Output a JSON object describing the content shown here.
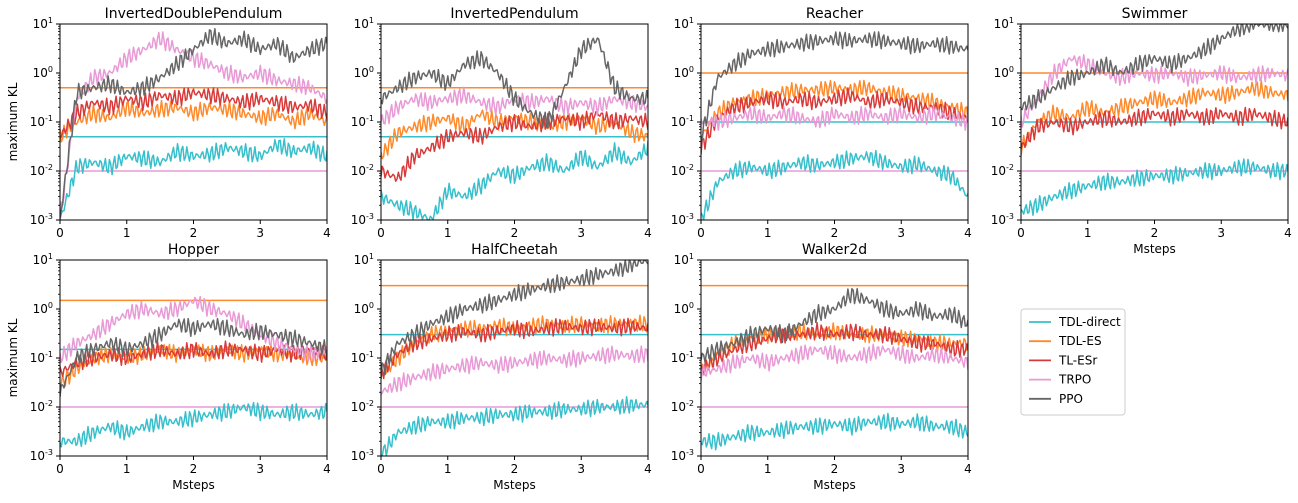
{
  "legend": {
    "placement": "right",
    "entries": [
      {
        "key": "tdl_direct",
        "label": "TDL-direct",
        "color": "#38bfcc"
      },
      {
        "key": "tdl_es",
        "label": "TDL-ES",
        "color": "#ff8a2b"
      },
      {
        "key": "tl_esr",
        "label": "TL-ESr",
        "color": "#d83a3a"
      },
      {
        "key": "trpo",
        "label": "TRPO",
        "color": "#e89ad6"
      },
      {
        "key": "ppo",
        "label": "PPO",
        "color": "#666666"
      }
    ]
  },
  "chart_data": [
    {
      "type": "line",
      "title": "InvertedDoublePendulum",
      "ylabel": "maximum KL",
      "xlabel": "",
      "xlim": [
        0,
        4
      ],
      "ylim": [
        0.001,
        10
      ],
      "yscale": "log",
      "x": [
        0,
        0.25,
        0.5,
        0.75,
        1,
        1.25,
        1.5,
        1.75,
        2,
        2.25,
        2.5,
        2.75,
        3,
        3.25,
        3.5,
        3.75,
        4
      ],
      "targets": {
        "tdl_direct": 0.05,
        "tdl_es": 0.5,
        "trpo": 0.01
      },
      "series": [
        {
          "name": "TDL-direct",
          "values": [
            0.001,
            0.012,
            0.015,
            0.012,
            0.02,
            0.018,
            0.015,
            0.025,
            0.02,
            0.022,
            0.03,
            0.025,
            0.02,
            0.035,
            0.025,
            0.03,
            0.02
          ]
        },
        {
          "name": "TDL-ES",
          "values": [
            0.05,
            0.1,
            0.15,
            0.12,
            0.2,
            0.15,
            0.18,
            0.2,
            0.15,
            0.2,
            0.18,
            0.15,
            0.12,
            0.15,
            0.1,
            0.15,
            0.1
          ]
        },
        {
          "name": "TL-ESr",
          "values": [
            0.05,
            0.15,
            0.25,
            0.2,
            0.3,
            0.25,
            0.35,
            0.3,
            0.4,
            0.35,
            0.3,
            0.25,
            0.3,
            0.25,
            0.2,
            0.22,
            0.15
          ]
        },
        {
          "name": "TRPO",
          "values": [
            0.001,
            0.3,
            0.8,
            1.0,
            2.0,
            3.0,
            5.0,
            3.0,
            2.0,
            1.5,
            1.0,
            0.8,
            1.0,
            0.7,
            0.6,
            0.5,
            0.3
          ]
        },
        {
          "name": "PPO",
          "values": [
            0.001,
            0.4,
            0.5,
            0.6,
            0.4,
            0.5,
            0.8,
            1.5,
            3.0,
            6.0,
            4.0,
            5.0,
            3.0,
            4.0,
            2.0,
            3.0,
            4.0
          ]
        }
      ]
    },
    {
      "type": "line",
      "title": "InvertedPendulum",
      "ylabel": "",
      "xlabel": "",
      "xlim": [
        0,
        4
      ],
      "ylim": [
        0.001,
        10
      ],
      "yscale": "log",
      "x": [
        0,
        0.25,
        0.5,
        0.75,
        1,
        1.25,
        1.5,
        1.75,
        2,
        2.25,
        2.5,
        2.75,
        3,
        3.25,
        3.5,
        3.75,
        4
      ],
      "targets": {
        "tdl_direct": 0.05,
        "tdl_es": 0.5
      },
      "series": [
        {
          "name": "TDL-direct",
          "values": [
            0.003,
            0.002,
            0.0015,
            0.001,
            0.004,
            0.003,
            0.005,
            0.01,
            0.008,
            0.012,
            0.015,
            0.01,
            0.02,
            0.012,
            0.025,
            0.015,
            0.03
          ]
        },
        {
          "name": "TDL-ES",
          "values": [
            0.02,
            0.06,
            0.08,
            0.1,
            0.12,
            0.08,
            0.15,
            0.1,
            0.12,
            0.1,
            0.08,
            0.1,
            0.12,
            0.08,
            0.1,
            0.06,
            0.05
          ]
        },
        {
          "name": "TL-ESr",
          "values": [
            0.01,
            0.007,
            0.02,
            0.03,
            0.05,
            0.06,
            0.05,
            0.08,
            0.1,
            0.08,
            0.1,
            0.12,
            0.1,
            0.15,
            0.1,
            0.12,
            0.1
          ]
        },
        {
          "name": "TRPO",
          "values": [
            0.1,
            0.2,
            0.3,
            0.25,
            0.3,
            0.35,
            0.25,
            0.2,
            0.3,
            0.25,
            0.3,
            0.2,
            0.25,
            0.2,
            0.3,
            0.25,
            0.2
          ]
        },
        {
          "name": "PPO",
          "values": [
            0.3,
            0.5,
            0.8,
            1.0,
            0.6,
            1.5,
            2.0,
            1.0,
            0.3,
            0.15,
            0.1,
            0.5,
            3.0,
            5.0,
            0.5,
            0.3,
            0.3
          ]
        }
      ]
    },
    {
      "type": "line",
      "title": "Reacher",
      "ylabel": "",
      "xlabel": "",
      "xlim": [
        0,
        4
      ],
      "ylim": [
        0.001,
        10
      ],
      "yscale": "log",
      "x": [
        0,
        0.25,
        0.5,
        0.75,
        1,
        1.25,
        1.5,
        1.75,
        2,
        2.25,
        2.5,
        2.75,
        3,
        3.25,
        3.5,
        3.75,
        4
      ],
      "targets": {
        "tdl_direct": 0.1,
        "tdl_es": 1.0,
        "trpo": 0.01
      },
      "series": [
        {
          "name": "TDL-direct",
          "values": [
            0.001,
            0.006,
            0.01,
            0.012,
            0.01,
            0.012,
            0.015,
            0.013,
            0.015,
            0.018,
            0.02,
            0.015,
            0.012,
            0.014,
            0.01,
            0.008,
            0.003
          ]
        },
        {
          "name": "TDL-ES",
          "values": [
            0.05,
            0.15,
            0.25,
            0.3,
            0.35,
            0.4,
            0.45,
            0.45,
            0.5,
            0.45,
            0.5,
            0.4,
            0.35,
            0.3,
            0.25,
            0.2,
            0.15
          ]
        },
        {
          "name": "TL-ESr",
          "values": [
            0.03,
            0.12,
            0.2,
            0.25,
            0.3,
            0.25,
            0.3,
            0.25,
            0.3,
            0.35,
            0.25,
            0.3,
            0.25,
            0.2,
            0.2,
            0.15,
            0.12
          ]
        },
        {
          "name": "TRPO",
          "values": [
            0.1,
            0.1,
            0.12,
            0.15,
            0.12,
            0.15,
            0.12,
            0.1,
            0.15,
            0.12,
            0.15,
            0.12,
            0.15,
            0.12,
            0.15,
            0.12,
            0.1
          ]
        },
        {
          "name": "PPO",
          "values": [
            0.05,
            0.8,
            1.5,
            2.5,
            3.0,
            3.5,
            4.0,
            4.5,
            5.0,
            4.5,
            5.0,
            4.5,
            4.0,
            3.5,
            4.0,
            3.5,
            3.0
          ]
        }
      ]
    },
    {
      "type": "line",
      "title": "Swimmer",
      "ylabel": "",
      "xlabel": "Msteps",
      "xlim": [
        0,
        4
      ],
      "ylim": [
        0.001,
        10
      ],
      "yscale": "log",
      "x": [
        0,
        0.25,
        0.5,
        0.75,
        1,
        1.25,
        1.5,
        1.75,
        2,
        2.25,
        2.5,
        2.75,
        3,
        3.25,
        3.5,
        3.75,
        4
      ],
      "targets": {
        "tdl_direct": 0.1,
        "tdl_es": 1.0,
        "trpo": 0.01
      },
      "series": [
        {
          "name": "TDL-direct",
          "values": [
            0.0015,
            0.002,
            0.003,
            0.004,
            0.005,
            0.006,
            0.006,
            0.007,
            0.008,
            0.008,
            0.009,
            0.01,
            0.01,
            0.012,
            0.012,
            0.01,
            0.01
          ]
        },
        {
          "name": "TDL-ES",
          "values": [
            0.03,
            0.1,
            0.15,
            0.12,
            0.2,
            0.15,
            0.2,
            0.25,
            0.3,
            0.25,
            0.3,
            0.4,
            0.35,
            0.4,
            0.5,
            0.4,
            0.35
          ]
        },
        {
          "name": "TL-ESr",
          "values": [
            0.03,
            0.08,
            0.1,
            0.08,
            0.1,
            0.12,
            0.1,
            0.12,
            0.15,
            0.12,
            0.15,
            0.12,
            0.15,
            0.12,
            0.15,
            0.12,
            0.1
          ]
        },
        {
          "name": "TRPO",
          "values": [
            0.1,
            0.3,
            1.0,
            2.0,
            1.5,
            1.0,
            0.8,
            1.0,
            0.9,
            1.0,
            0.8,
            0.9,
            1.0,
            0.8,
            0.9,
            1.0,
            0.9
          ]
        },
        {
          "name": "PPO",
          "values": [
            0.2,
            0.3,
            0.5,
            0.8,
            1.0,
            1.5,
            1.0,
            1.5,
            2.0,
            1.5,
            2.0,
            3.0,
            5.0,
            8.0,
            10.0,
            10.0,
            10.0
          ]
        }
      ]
    },
    {
      "type": "line",
      "title": "Hopper",
      "ylabel": "maximum KL",
      "xlabel": "Msteps",
      "xlim": [
        0,
        4
      ],
      "ylim": [
        0.001,
        10
      ],
      "yscale": "log",
      "x": [
        0,
        0.25,
        0.5,
        0.75,
        1,
        1.25,
        1.5,
        1.75,
        2,
        2.25,
        2.5,
        2.75,
        3,
        3.25,
        3.5,
        3.75,
        4
      ],
      "targets": {
        "tdl_direct": 0.15,
        "tdl_es": 1.5,
        "trpo": 0.01
      },
      "series": [
        {
          "name": "TDL-direct",
          "values": [
            0.002,
            0.002,
            0.003,
            0.004,
            0.003,
            0.004,
            0.005,
            0.005,
            0.006,
            0.007,
            0.008,
            0.01,
            0.008,
            0.007,
            0.008,
            0.007,
            0.008
          ]
        },
        {
          "name": "TDL-ES",
          "values": [
            0.03,
            0.06,
            0.1,
            0.12,
            0.1,
            0.12,
            0.15,
            0.12,
            0.15,
            0.12,
            0.15,
            0.12,
            0.15,
            0.12,
            0.12,
            0.1,
            0.1
          ]
        },
        {
          "name": "TL-ESr",
          "values": [
            0.05,
            0.08,
            0.1,
            0.12,
            0.1,
            0.12,
            0.15,
            0.12,
            0.15,
            0.12,
            0.15,
            0.15,
            0.12,
            0.15,
            0.12,
            0.15,
            0.12
          ]
        },
        {
          "name": "TRPO",
          "values": [
            0.1,
            0.2,
            0.3,
            0.5,
            0.8,
            1.0,
            0.8,
            1.0,
            1.5,
            1.0,
            0.8,
            0.5,
            0.3,
            0.2,
            0.15,
            0.12,
            0.15
          ]
        },
        {
          "name": "PPO",
          "values": [
            0.02,
            0.1,
            0.15,
            0.2,
            0.15,
            0.2,
            0.3,
            0.5,
            0.4,
            0.5,
            0.4,
            0.3,
            0.35,
            0.3,
            0.25,
            0.2,
            0.15
          ]
        }
      ]
    },
    {
      "type": "line",
      "title": "HalfCheetah",
      "ylabel": "",
      "xlabel": "Msteps",
      "xlim": [
        0,
        4
      ],
      "ylim": [
        0.001,
        10
      ],
      "yscale": "log",
      "x": [
        0,
        0.25,
        0.5,
        0.75,
        1,
        1.25,
        1.5,
        1.75,
        2,
        2.25,
        2.5,
        2.75,
        3,
        3.25,
        3.5,
        3.75,
        4
      ],
      "targets": {
        "tdl_direct": 0.3,
        "tdl_es": 3.0,
        "trpo": 0.01
      },
      "series": [
        {
          "name": "TDL-direct",
          "values": [
            0.001,
            0.003,
            0.004,
            0.005,
            0.005,
            0.006,
            0.006,
            0.007,
            0.007,
            0.008,
            0.008,
            0.009,
            0.009,
            0.01,
            0.01,
            0.011,
            0.011
          ]
        },
        {
          "name": "TDL-ES",
          "values": [
            0.04,
            0.1,
            0.2,
            0.3,
            0.35,
            0.4,
            0.4,
            0.45,
            0.4,
            0.45,
            0.5,
            0.45,
            0.5,
            0.45,
            0.5,
            0.5,
            0.5
          ]
        },
        {
          "name": "TL-ESr",
          "values": [
            0.05,
            0.12,
            0.2,
            0.25,
            0.3,
            0.35,
            0.3,
            0.35,
            0.4,
            0.35,
            0.4,
            0.45,
            0.4,
            0.45,
            0.4,
            0.45,
            0.4
          ]
        },
        {
          "name": "TRPO",
          "values": [
            0.02,
            0.03,
            0.04,
            0.05,
            0.06,
            0.07,
            0.08,
            0.07,
            0.08,
            0.09,
            0.1,
            0.09,
            0.1,
            0.11,
            0.12,
            0.11,
            0.12
          ]
        },
        {
          "name": "PPO",
          "values": [
            0.05,
            0.2,
            0.3,
            0.5,
            0.7,
            1.0,
            1.2,
            1.5,
            2.0,
            2.5,
            3.0,
            3.5,
            4.0,
            5.0,
            6.0,
            8.0,
            10.0
          ]
        }
      ]
    },
    {
      "type": "line",
      "title": "Walker2d",
      "ylabel": "",
      "xlabel": "Msteps",
      "xlim": [
        0,
        4
      ],
      "ylim": [
        0.001,
        10
      ],
      "yscale": "log",
      "x": [
        0,
        0.25,
        0.5,
        0.75,
        1,
        1.25,
        1.5,
        1.75,
        2,
        2.25,
        2.5,
        2.75,
        3,
        3.25,
        3.5,
        3.75,
        4
      ],
      "targets": {
        "tdl_direct": 0.3,
        "tdl_es": 3.0,
        "trpo": 0.01
      },
      "series": [
        {
          "name": "TDL-direct",
          "values": [
            0.002,
            0.002,
            0.0025,
            0.003,
            0.003,
            0.0035,
            0.004,
            0.004,
            0.0045,
            0.004,
            0.005,
            0.005,
            0.0045,
            0.005,
            0.004,
            0.004,
            0.003
          ]
        },
        {
          "name": "TDL-ES",
          "values": [
            0.05,
            0.12,
            0.2,
            0.25,
            0.3,
            0.3,
            0.35,
            0.3,
            0.35,
            0.3,
            0.3,
            0.3,
            0.25,
            0.25,
            0.2,
            0.2,
            0.2
          ]
        },
        {
          "name": "TL-ESr",
          "values": [
            0.06,
            0.1,
            0.15,
            0.2,
            0.25,
            0.3,
            0.3,
            0.35,
            0.3,
            0.35,
            0.3,
            0.3,
            0.25,
            0.2,
            0.2,
            0.15,
            0.15
          ]
        },
        {
          "name": "TRPO",
          "values": [
            0.05,
            0.06,
            0.08,
            0.1,
            0.08,
            0.1,
            0.12,
            0.15,
            0.12,
            0.1,
            0.12,
            0.15,
            0.12,
            0.1,
            0.12,
            0.1,
            0.08
          ]
        },
        {
          "name": "PPO",
          "values": [
            0.1,
            0.15,
            0.2,
            0.3,
            0.4,
            0.3,
            0.5,
            0.8,
            1.0,
            2.0,
            1.5,
            1.0,
            0.8,
            1.0,
            0.7,
            0.8,
            0.5
          ]
        }
      ]
    }
  ]
}
